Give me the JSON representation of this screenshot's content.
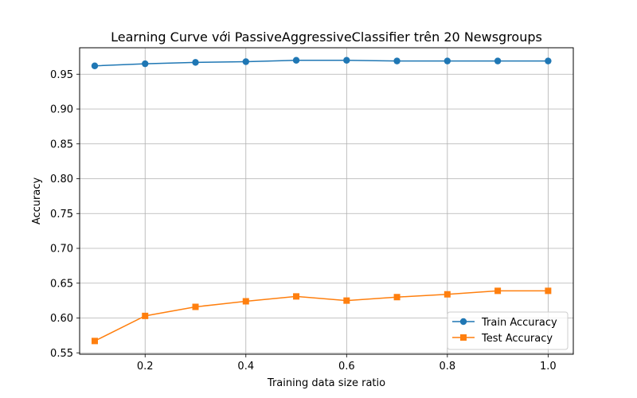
{
  "chart_data": {
    "type": "line",
    "title": "Learning Curve với PassiveAggressiveClassifier trên 20 Newsgroups",
    "xlabel": "Training data size ratio",
    "ylabel": "Accuracy",
    "x": [
      0.1,
      0.2,
      0.3,
      0.4,
      0.5,
      0.6,
      0.7,
      0.8,
      0.9,
      1.0
    ],
    "xlim": [
      0.07,
      1.05
    ],
    "ylim": [
      0.548,
      0.988
    ],
    "xticks": [
      "0.2",
      "0.4",
      "0.6",
      "0.8",
      "1.0"
    ],
    "yticks": [
      "0.55",
      "0.60",
      "0.65",
      "0.70",
      "0.75",
      "0.80",
      "0.85",
      "0.90",
      "0.95"
    ],
    "grid": true,
    "legend_position": "lower-right",
    "series": [
      {
        "name": "Train Accuracy",
        "color": "#1f77b4",
        "marker": "circle",
        "values": [
          0.962,
          0.965,
          0.967,
          0.968,
          0.97,
          0.97,
          0.969,
          0.969,
          0.969,
          0.969
        ]
      },
      {
        "name": "Test Accuracy",
        "color": "#ff7f0e",
        "marker": "square",
        "values": [
          0.567,
          0.603,
          0.616,
          0.624,
          0.631,
          0.625,
          0.63,
          0.634,
          0.639,
          0.639
        ]
      }
    ]
  }
}
